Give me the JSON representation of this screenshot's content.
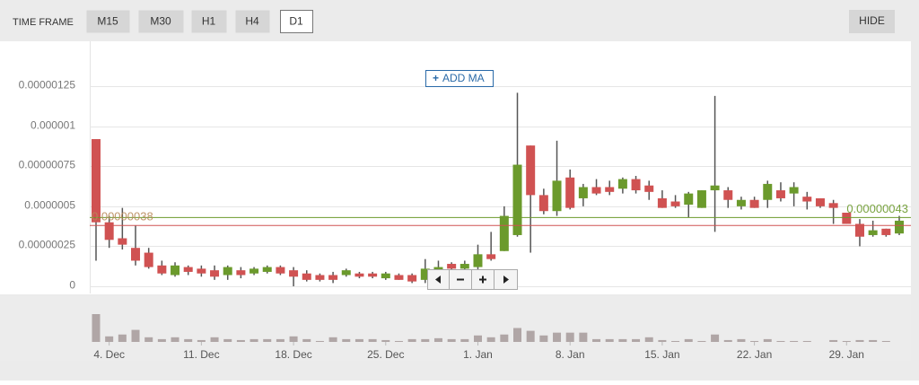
{
  "toolbar": {
    "label": "TIME FRAME",
    "buttons": [
      "M15",
      "M30",
      "H1",
      "H4",
      "D1"
    ],
    "active": "D1",
    "hide": "HIDE"
  },
  "add_ma": "ADD MA",
  "chart_data": {
    "type": "candlestick",
    "up_color": "#6b9a2c",
    "down_color": "#d05252",
    "wick_color": "#555555",
    "grid": true,
    "ylim": [
      -4.5e-08,
      1.47e-06
    ],
    "yticks": [
      {
        "value": 0,
        "label": "0"
      },
      {
        "value": 2.5e-07,
        "label": "0.00000025"
      },
      {
        "value": 5e-07,
        "label": "0.0000005"
      },
      {
        "value": 7.5e-07,
        "label": "0.00000075"
      },
      {
        "value": 1e-06,
        "label": "0.000001"
      },
      {
        "value": 1.25e-06,
        "label": "0.00000125"
      }
    ],
    "xlim": [
      -0.5,
      61.5
    ],
    "xticks": [
      {
        "value": 1,
        "label": "4. Dec"
      },
      {
        "value": 8,
        "label": "11. Dec"
      },
      {
        "value": 15,
        "label": "18. Dec"
      },
      {
        "value": 22,
        "label": "25. Dec"
      },
      {
        "value": 29,
        "label": "1. Jan"
      },
      {
        "value": 36,
        "label": "8. Jan"
      },
      {
        "value": 43,
        "label": "15. Jan"
      },
      {
        "value": 50,
        "label": "22. Jan"
      },
      {
        "value": 57,
        "label": "29. Jan"
      }
    ],
    "open": [
      9.2e-07,
      4e-07,
      3e-07,
      2.4e-07,
      2.1e-07,
      1.3e-07,
      7e-08,
      1.2e-07,
      1.1e-07,
      1e-07,
      7e-08,
      1e-07,
      8e-08,
      9e-08,
      1.2e-07,
      1e-07,
      8e-08,
      7e-08,
      7e-08,
      7e-08,
      8e-08,
      8e-08,
      5e-08,
      7e-08,
      7e-08,
      4e-08,
      8e-08,
      1.4e-07,
      1.1e-07,
      1.2e-07,
      2e-07,
      2.2e-07,
      3.2e-07,
      8.8e-07,
      5.7e-07,
      4.7e-07,
      6.8e-07,
      5.5e-07,
      6.2e-07,
      6.2e-07,
      6.1e-07,
      6.7e-07,
      6.3e-07,
      5.5e-07,
      5.3e-07,
      5.1e-07,
      4.9e-07,
      6e-07,
      6e-07,
      5e-07,
      5.4e-07,
      5.4e-07,
      6e-07,
      5.8e-07,
      5.6e-07,
      5.5e-07,
      5.2e-07,
      4.6e-07,
      3.9e-07,
      3.2e-07,
      3.6e-07,
      3.3e-07
    ],
    "high": [
      9.2e-07,
      4.4e-07,
      4.9e-07,
      3.8e-07,
      2.4e-07,
      1.6e-07,
      1.5e-07,
      1.3e-07,
      1.3e-07,
      1.3e-07,
      1.3e-07,
      1.2e-07,
      1.2e-07,
      1.3e-07,
      1.3e-07,
      1.2e-07,
      1e-07,
      8e-08,
      9e-08,
      1.1e-07,
      9e-08,
      9e-08,
      9e-08,
      8e-08,
      8e-08,
      1.7e-07,
      1.6e-07,
      1.5e-07,
      1.6e-07,
      2.6e-07,
      3.4e-07,
      5e-07,
      1.21e-06,
      8.8e-07,
      6.1e-07,
      9.1e-07,
      7.3e-07,
      6.4e-07,
      6.7e-07,
      6.6e-07,
      6.8e-07,
      6.9e-07,
      6.6e-07,
      6e-07,
      5.7e-07,
      5.9e-07,
      6e-07,
      1.19e-06,
      6.2e-07,
      5.6e-07,
      5.6e-07,
      6.6e-07,
      6.5e-07,
      6.5e-07,
      5.9e-07,
      5.5e-07,
      5.4e-07,
      4.6e-07,
      4.2e-07,
      4.1e-07,
      3.6e-07,
      4.4e-07
    ],
    "low": [
      1.6e-07,
      2.4e-07,
      2.3e-07,
      1.3e-07,
      1.1e-07,
      7e-08,
      6e-08,
      7e-08,
      6e-08,
      4e-08,
      4e-08,
      5e-08,
      7e-08,
      8e-08,
      7e-08,
      0,
      3e-08,
      3e-08,
      2e-08,
      6e-08,
      5e-08,
      5e-08,
      4e-08,
      4e-08,
      2e-08,
      2e-08,
      7e-08,
      9e-08,
      1e-07,
      1e-07,
      1.6e-07,
      2.2e-07,
      3.1e-07,
      2.1e-07,
      4.5e-07,
      4.4e-07,
      4.8e-07,
      5e-07,
      5.7e-07,
      5.7e-07,
      5.8e-07,
      5.8e-07,
      5.4e-07,
      4.9e-07,
      4.9e-07,
      4.3e-07,
      4.9e-07,
      3.4e-07,
      4.9e-07,
      4.8e-07,
      4.9e-07,
      4.9e-07,
      5.3e-07,
      5e-07,
      4.8e-07,
      4.9e-07,
      3.9e-07,
      3.9e-07,
      2.5e-07,
      3.1e-07,
      3.1e-07,
      3.2e-07
    ],
    "close": [
      4e-07,
      2.9e-07,
      2.6e-07,
      1.6e-07,
      1.2e-07,
      8e-08,
      1.3e-07,
      9e-08,
      8e-08,
      6e-08,
      1.2e-07,
      7e-08,
      1.1e-07,
      1.2e-07,
      8e-08,
      6e-08,
      4e-08,
      4e-08,
      4e-08,
      1e-07,
      6e-08,
      6e-08,
      8e-08,
      4e-08,
      3e-08,
      1.1e-07,
      1.2e-07,
      1.1e-07,
      1.4e-07,
      2e-07,
      1.7e-07,
      4.4e-07,
      7.6e-07,
      5.7e-07,
      4.7e-07,
      6.6e-07,
      4.9e-07,
      6.2e-07,
      5.8e-07,
      5.9e-07,
      6.7e-07,
      6e-07,
      5.9e-07,
      4.9e-07,
      5e-07,
      5.8e-07,
      6e-07,
      6.3e-07,
      5.4e-07,
      5.4e-07,
      4.9e-07,
      6.4e-07,
      5.5e-07,
      6.2e-07,
      5.3e-07,
      5e-07,
      4.9e-07,
      3.9e-07,
      3.1e-07,
      3.5e-07,
      3.2e-07,
      4.1e-07
    ],
    "volume": [
      30,
      6,
      8,
      13,
      5,
      3,
      5,
      3,
      2,
      5,
      3,
      2,
      3,
      3,
      3,
      6,
      3,
      1,
      5,
      3,
      3,
      3,
      2,
      1,
      3,
      3,
      4,
      3,
      3,
      7,
      5,
      8,
      15,
      12,
      7,
      10,
      10,
      10,
      3,
      3,
      3,
      3,
      5,
      2,
      1,
      3,
      1,
      8,
      2,
      3,
      1,
      3,
      1,
      1,
      1,
      0,
      2,
      1,
      2,
      2,
      1,
      0
    ],
    "volume_color": "#b0a6a6",
    "lines": [
      {
        "value": 4.3e-07,
        "label": "0.00000043",
        "color": "#6b9a2c"
      },
      {
        "value": 3.8e-07,
        "label": "0.00000038",
        "color": "#d05252"
      }
    ]
  }
}
